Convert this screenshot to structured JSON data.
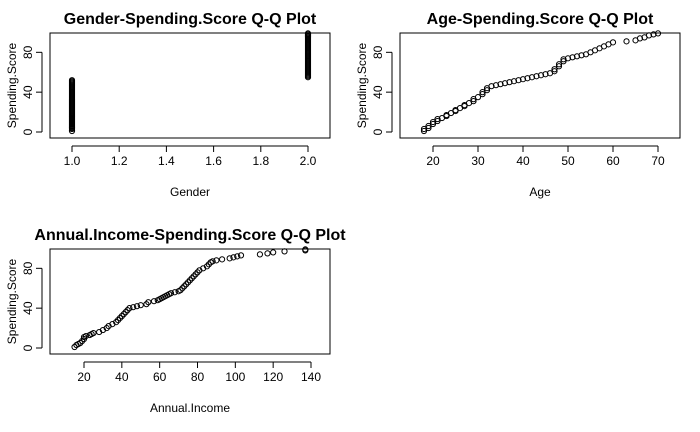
{
  "chart_data": [
    {
      "type": "scatter",
      "title": "Gender-Spending.Score Q-Q Plot",
      "xlabel": "Gender",
      "ylabel": "Spending.Score",
      "xlim": [
        0.95,
        2.05
      ],
      "ylim": [
        -4,
        104
      ],
      "xticks": [
        1.0,
        1.2,
        1.4,
        1.6,
        1.8,
        2.0
      ],
      "xtick_labels": [
        "1.0",
        "1.2",
        "1.4",
        "1.6",
        "1.8",
        "2.0"
      ],
      "yticks": [
        0,
        40,
        80
      ],
      "ytick_labels": [
        "0",
        "40",
        "80"
      ],
      "grid": false,
      "points": [
        [
          1,
          1
        ],
        [
          1,
          3
        ],
        [
          1,
          4
        ],
        [
          1,
          5
        ],
        [
          1,
          6
        ],
        [
          1,
          7
        ],
        [
          1,
          8
        ],
        [
          1,
          9
        ],
        [
          1,
          10
        ],
        [
          1,
          11
        ],
        [
          1,
          12
        ],
        [
          1,
          13
        ],
        [
          1,
          14
        ],
        [
          1,
          15
        ],
        [
          1,
          16
        ],
        [
          1,
          17
        ],
        [
          1,
          18
        ],
        [
          1,
          19
        ],
        [
          1,
          20
        ],
        [
          1,
          21
        ],
        [
          1,
          22
        ],
        [
          1,
          23
        ],
        [
          1,
          24
        ],
        [
          1,
          25
        ],
        [
          1,
          26
        ],
        [
          1,
          27
        ],
        [
          1,
          28
        ],
        [
          1,
          29
        ],
        [
          1,
          30
        ],
        [
          1,
          31
        ],
        [
          1,
          32
        ],
        [
          1,
          33
        ],
        [
          1,
          34
        ],
        [
          1,
          35
        ],
        [
          1,
          36
        ],
        [
          1,
          37
        ],
        [
          1,
          38
        ],
        [
          1,
          39
        ],
        [
          1,
          40
        ],
        [
          1,
          41
        ],
        [
          1,
          42
        ],
        [
          1,
          43
        ],
        [
          1,
          44
        ],
        [
          1,
          45
        ],
        [
          1,
          46
        ],
        [
          1,
          47
        ],
        [
          1,
          48
        ],
        [
          1,
          49
        ],
        [
          1,
          50
        ],
        [
          1,
          51
        ],
        [
          1,
          52
        ],
        [
          2,
          55
        ],
        [
          2,
          56
        ],
        [
          2,
          57
        ],
        [
          2,
          58
        ],
        [
          2,
          59
        ],
        [
          2,
          60
        ],
        [
          2,
          61
        ],
        [
          2,
          62
        ],
        [
          2,
          63
        ],
        [
          2,
          64
        ],
        [
          2,
          65
        ],
        [
          2,
          66
        ],
        [
          2,
          67
        ],
        [
          2,
          68
        ],
        [
          2,
          69
        ],
        [
          2,
          70
        ],
        [
          2,
          71
        ],
        [
          2,
          72
        ],
        [
          2,
          73
        ],
        [
          2,
          74
        ],
        [
          2,
          75
        ],
        [
          2,
          76
        ],
        [
          2,
          77
        ],
        [
          2,
          78
        ],
        [
          2,
          79
        ],
        [
          2,
          80
        ],
        [
          2,
          81
        ],
        [
          2,
          82
        ],
        [
          2,
          83
        ],
        [
          2,
          84
        ],
        [
          2,
          85
        ],
        [
          2,
          86
        ],
        [
          2,
          87
        ],
        [
          2,
          88
        ],
        [
          2,
          89
        ],
        [
          2,
          90
        ],
        [
          2,
          91
        ],
        [
          2,
          92
        ],
        [
          2,
          93
        ],
        [
          2,
          94
        ],
        [
          2,
          95
        ],
        [
          2,
          96
        ],
        [
          2,
          97
        ],
        [
          2,
          98
        ],
        [
          2,
          99
        ]
      ]
    },
    {
      "type": "scatter",
      "title": "Age-Spending.Score Q-Q Plot",
      "xlabel": "Age",
      "ylabel": "Spending.Score",
      "xlim": [
        16,
        72
      ],
      "ylim": [
        -4,
        104
      ],
      "xticks": [
        20,
        30,
        40,
        50,
        60,
        70
      ],
      "xtick_labels": [
        "20",
        "30",
        "40",
        "50",
        "60",
        "70"
      ],
      "yticks": [
        0,
        40,
        80
      ],
      "ytick_labels": [
        "0",
        "40",
        "80"
      ],
      "grid": false,
      "points": [
        [
          18,
          1
        ],
        [
          18,
          3
        ],
        [
          19,
          4
        ],
        [
          19,
          6
        ],
        [
          20,
          8
        ],
        [
          20,
          10
        ],
        [
          21,
          11
        ],
        [
          21,
          13
        ],
        [
          22,
          14
        ],
        [
          23,
          16
        ],
        [
          23,
          17
        ],
        [
          24,
          19
        ],
        [
          25,
          21
        ],
        [
          25,
          22
        ],
        [
          26,
          24
        ],
        [
          27,
          26
        ],
        [
          27,
          27
        ],
        [
          28,
          29
        ],
        [
          29,
          31
        ],
        [
          29,
          33
        ],
        [
          30,
          35
        ],
        [
          31,
          38
        ],
        [
          31,
          40
        ],
        [
          32,
          42
        ],
        [
          32,
          44
        ],
        [
          33,
          46
        ],
        [
          34,
          47
        ],
        [
          35,
          48
        ],
        [
          36,
          49
        ],
        [
          37,
          50
        ],
        [
          38,
          51
        ],
        [
          39,
          52
        ],
        [
          40,
          53
        ],
        [
          41,
          54
        ],
        [
          42,
          55
        ],
        [
          43,
          56
        ],
        [
          44,
          57
        ],
        [
          45,
          58
        ],
        [
          46,
          59
        ],
        [
          47,
          61
        ],
        [
          47,
          63
        ],
        [
          48,
          66
        ],
        [
          48,
          68
        ],
        [
          49,
          71
        ],
        [
          49,
          73
        ],
        [
          50,
          74
        ],
        [
          51,
          75
        ],
        [
          52,
          76
        ],
        [
          53,
          77
        ],
        [
          54,
          78
        ],
        [
          55,
          80
        ],
        [
          56,
          82
        ],
        [
          57,
          84
        ],
        [
          58,
          86
        ],
        [
          59,
          88
        ],
        [
          60,
          90
        ],
        [
          63,
          91
        ],
        [
          65,
          92
        ],
        [
          66,
          94
        ],
        [
          67,
          95
        ],
        [
          68,
          97
        ],
        [
          69,
          98
        ],
        [
          70,
          99
        ]
      ]
    },
    {
      "type": "scatter",
      "title": "Annual.Income-Spending.Score Q-Q Plot",
      "xlabel": "Annual.Income",
      "ylabel": "Spending.Score",
      "xlim": [
        10,
        142
      ],
      "ylim": [
        -4,
        104
      ],
      "xticks": [
        20,
        40,
        60,
        80,
        100,
        120,
        140
      ],
      "xtick_labels": [
        "20",
        "40",
        "60",
        "80",
        "100",
        "120",
        "140"
      ],
      "yticks": [
        0,
        40,
        80
      ],
      "ytick_labels": [
        "0",
        "40",
        "80"
      ],
      "grid": false,
      "points": [
        [
          15,
          1
        ],
        [
          16,
          3
        ],
        [
          17,
          4
        ],
        [
          18,
          5
        ],
        [
          19,
          7
        ],
        [
          20,
          9
        ],
        [
          20,
          11
        ],
        [
          21,
          12
        ],
        [
          23,
          13
        ],
        [
          24,
          14
        ],
        [
          25,
          15
        ],
        [
          28,
          16
        ],
        [
          30,
          18
        ],
        [
          32,
          20
        ],
        [
          33,
          22
        ],
        [
          35,
          24
        ],
        [
          37,
          26
        ],
        [
          38,
          28
        ],
        [
          39,
          30
        ],
        [
          40,
          32
        ],
        [
          41,
          34
        ],
        [
          42,
          36
        ],
        [
          43,
          38
        ],
        [
          44,
          40
        ],
        [
          46,
          41
        ],
        [
          48,
          42
        ],
        [
          50,
          43
        ],
        [
          53,
          44
        ],
        [
          54,
          46
        ],
        [
          57,
          47
        ],
        [
          59,
          48
        ],
        [
          60,
          49
        ],
        [
          61,
          50
        ],
        [
          62,
          51
        ],
        [
          63,
          52
        ],
        [
          64,
          53
        ],
        [
          65,
          54
        ],
        [
          66,
          55
        ],
        [
          68,
          56
        ],
        [
          70,
          57
        ],
        [
          71,
          58
        ],
        [
          72,
          60
        ],
        [
          73,
          62
        ],
        [
          74,
          64
        ],
        [
          75,
          66
        ],
        [
          76,
          68
        ],
        [
          77,
          70
        ],
        [
          78,
          72
        ],
        [
          79,
          74
        ],
        [
          80,
          76
        ],
        [
          81,
          78
        ],
        [
          83,
          80
        ],
        [
          85,
          82
        ],
        [
          86,
          84
        ],
        [
          87,
          86
        ],
        [
          88,
          87
        ],
        [
          90,
          88
        ],
        [
          93,
          89
        ],
        [
          97,
          90
        ],
        [
          99,
          91
        ],
        [
          101,
          92
        ],
        [
          103,
          93
        ],
        [
          113,
          94
        ],
        [
          117,
          95
        ],
        [
          120,
          96
        ],
        [
          126,
          97
        ],
        [
          137,
          98
        ],
        [
          137,
          99
        ]
      ]
    }
  ]
}
